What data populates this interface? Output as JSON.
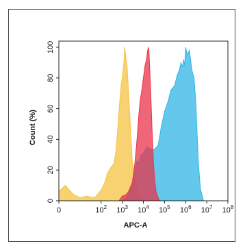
{
  "chart_data": {
    "type": "area",
    "title": "",
    "xlabel": "APC-A",
    "ylabel": "Count (%)",
    "x_scale": "log",
    "xlim": [
      1,
      100000000
    ],
    "ylim": [
      0,
      104
    ],
    "x_ticks": [
      {
        "value": 1,
        "base": "0",
        "exp": ""
      },
      {
        "value": 100,
        "base": "10",
        "exp": "2"
      },
      {
        "value": 1000,
        "base": "10",
        "exp": "3"
      },
      {
        "value": 10000,
        "base": "10",
        "exp": "4"
      },
      {
        "value": 100000,
        "base": "10",
        "exp": "5"
      },
      {
        "value": 1000000,
        "base": "10",
        "exp": "6"
      },
      {
        "value": 10000000,
        "base": "10",
        "exp": "7"
      },
      {
        "value": 100000000,
        "base": "10",
        "exp": "8"
      }
    ],
    "y_ticks": [
      "0",
      "20",
      "40",
      "60",
      "80",
      "100"
    ],
    "grid": false,
    "legend": "none",
    "series": [
      {
        "color": "#f5c242",
        "x": [
          1,
          2,
          5,
          10,
          20,
          50,
          100,
          150,
          200,
          300,
          400,
          500,
          600,
          700,
          800,
          900,
          1000,
          1100,
          1200,
          1300,
          1400,
          1500,
          1700,
          2000,
          2500,
          3000,
          4000,
          5000,
          6000,
          8000,
          10000,
          20000
        ],
        "values": [
          6,
          10,
          4,
          2,
          3,
          2,
          7,
          12,
          18,
          22,
          24,
          32,
          45,
          58,
          68,
          76,
          80,
          85,
          90,
          100,
          97,
          92,
          88,
          70,
          45,
          25,
          12,
          8,
          5,
          2,
          1,
          0
        ]
      },
      {
        "color": "#2fb5e6",
        "x": [
          1000,
          1500,
          2000,
          3000,
          4000,
          5000,
          6000,
          7000,
          8000,
          10000,
          15000,
          20000,
          30000,
          50000,
          70000,
          100000,
          150000,
          200000,
          300000,
          400000,
          500000,
          600000,
          700000,
          800000,
          900000,
          1000000,
          1200000,
          1500000,
          2000000,
          2500000,
          3000000,
          4000000,
          5000000,
          7000000
        ],
        "values": [
          0,
          2,
          5,
          12,
          20,
          26,
          24,
          28,
          30,
          31,
          35,
          34,
          33,
          36,
          48,
          58,
          65,
          72,
          75,
          82,
          85,
          90,
          87,
          92,
          88,
          100,
          95,
          98,
          85,
          80,
          65,
          25,
          8,
          0
        ]
      },
      {
        "color": "#e8334a",
        "x": [
          700,
          1000,
          1500,
          2000,
          3000,
          4000,
          5000,
          6000,
          7000,
          8000,
          9000,
          10000,
          12000,
          14000,
          16000,
          18000,
          20000,
          23000,
          26000,
          30000,
          35000,
          40000,
          50000,
          60000
        ],
        "values": [
          0,
          3,
          4,
          6,
          12,
          25,
          40,
          55,
          65,
          70,
          75,
          80,
          88,
          92,
          98,
          100,
          86,
          65,
          45,
          25,
          12,
          6,
          2,
          0
        ]
      }
    ]
  }
}
